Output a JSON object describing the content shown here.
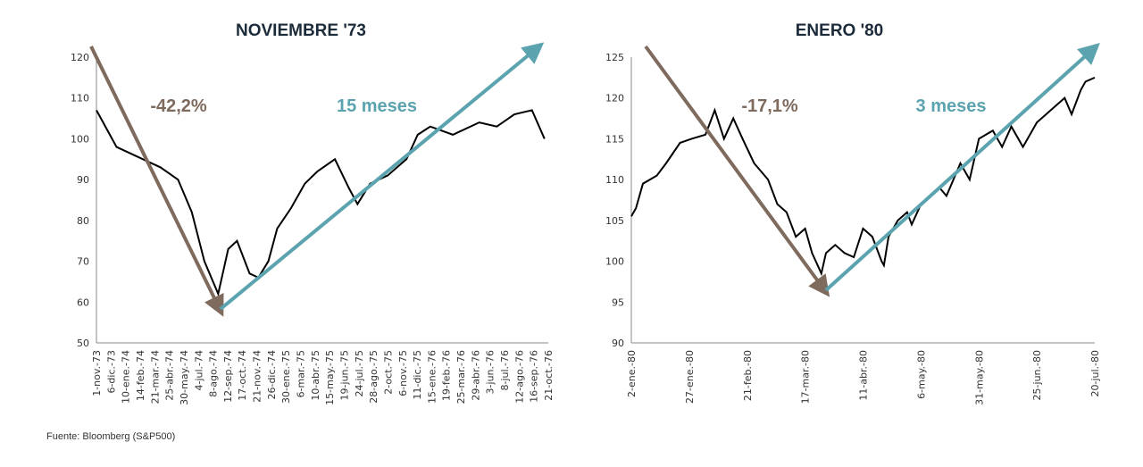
{
  "source": "Fuente: Bloomberg (S&P500)",
  "colors": {
    "down": "#7f6a5e",
    "up": "#5ba3ae",
    "line": "#000000",
    "axis": "#888888"
  },
  "chart_data": [
    {
      "type": "line",
      "title": "NOVIEMBRE '73",
      "x_unit": "months since 1-nov.-73",
      "xlim": [
        0,
        36
      ],
      "ylim": [
        50,
        120
      ],
      "yticks": [
        50,
        60,
        70,
        80,
        90,
        100,
        110,
        120
      ],
      "xtick_labels": [
        "1-nov.-73",
        "6-dic.-73",
        "10-ene.-74",
        "14-feb.-74",
        "21-mar.-74",
        "25-abr.-74",
        "30-may.-74",
        "4-jul.-74",
        "8-ago.-74",
        "12-sep.-74",
        "17-oct.-74",
        "21-nov.-74",
        "26-dic.-74",
        "30-ene.-75",
        "6-mar.-75",
        "10-abr.-75",
        "15-may.-75",
        "19-jun.-75",
        "24-jul.-75",
        "28-ago.-75",
        "2-oct.-75",
        "6-nov.-75",
        "11-dic.-75",
        "15-ene.-76",
        "19-feb.-76",
        "25-mar.-76",
        "29-abr.-76",
        "3-jun.-76",
        "8-jul.-76",
        "12-ago.-76",
        "16-sep.-76",
        "21-oct.-76"
      ],
      "x": [
        0,
        1.6,
        3.7,
        5.1,
        6.5,
        7.6,
        8.6,
        9.7,
        10.5,
        11.2,
        12.2,
        12.9,
        13.7,
        14.4,
        15.5,
        16.6,
        17.6,
        19.0,
        20.1,
        20.8,
        21.8,
        23.2,
        24.7,
        25.6,
        26.6,
        28.4,
        30.5,
        31.9,
        33.3,
        34.7,
        35.7
      ],
      "y": [
        107,
        98,
        95,
        93,
        90,
        82,
        70,
        62,
        73,
        75,
        67,
        66,
        70,
        78,
        83,
        89,
        92,
        95,
        88,
        84,
        89,
        91,
        95,
        101,
        103,
        101,
        104,
        103,
        106,
        107,
        100
      ],
      "annotations": [
        {
          "text": "-42,2%",
          "role": "drawdown"
        },
        {
          "text": "15 meses",
          "role": "recovery"
        }
      ]
    },
    {
      "type": "line",
      "title": "ENERO '80",
      "x_unit": "days since 2-ene.-80",
      "xlim": [
        0,
        200
      ],
      "ylim": [
        90,
        125
      ],
      "yticks": [
        90,
        95,
        100,
        105,
        110,
        115,
        120,
        125
      ],
      "xtick_labels": [
        "2-ene.-80",
        "27-ene.-80",
        "21-feb.-80",
        "17-mar.-80",
        "11-abr.-80",
        "6-may.-80",
        "31-may.-80",
        "25-jun.-80",
        "20-jul.-80"
      ],
      "x": [
        0,
        2,
        5,
        11,
        15,
        21,
        26,
        32,
        36,
        40,
        44,
        48,
        53,
        59,
        63,
        67,
        71,
        75,
        78,
        82,
        84,
        88,
        92,
        96,
        100,
        104,
        108,
        109,
        111,
        115,
        119,
        121,
        125,
        129,
        133,
        136,
        142,
        146,
        150,
        156,
        160,
        164,
        169,
        175,
        181,
        187,
        190,
        194,
        196,
        200
      ],
      "y": [
        105.5,
        106.5,
        109.5,
        110.5,
        112,
        114.5,
        115,
        115.5,
        118.5,
        115,
        117.5,
        115,
        112,
        110,
        107,
        106,
        103,
        104,
        101,
        98.5,
        101,
        102,
        101,
        100.5,
        104,
        103,
        100,
        99.5,
        103,
        105,
        106,
        104.5,
        107,
        108,
        109,
        108,
        112,
        110,
        115,
        116,
        114,
        116.5,
        114,
        117,
        118.5,
        120,
        118,
        121,
        122,
        122.5
      ],
      "annotations": [
        {
          "text": "-17,1%",
          "role": "drawdown"
        },
        {
          "text": "3 meses",
          "role": "recovery"
        }
      ]
    }
  ]
}
